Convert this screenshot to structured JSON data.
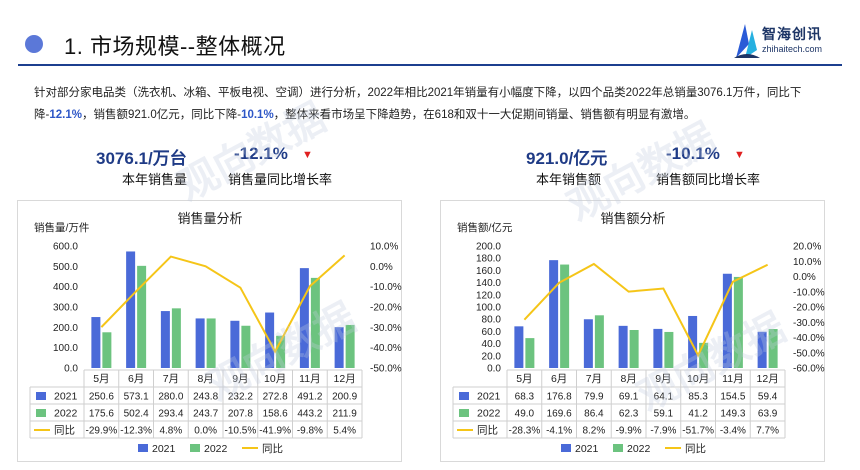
{
  "header": {
    "title": "1. 市场规模--整体概况"
  },
  "logo": {
    "name": "智海创讯",
    "url": "zhihaitech.com"
  },
  "watermark": "观向数据",
  "intro": {
    "p1": "针对部分家电品类（洗衣机、冰箱、平板电视、空调）进行分析，2022年相比2021年销量有小幅度下降，以四个品类2022年总销量3076.1万件，同比下降-",
    "h1": "12.1%",
    "p2": "，销售额921.0亿元，同比下降-",
    "h2": "10.1%",
    "p3": "，整体来看市场呈下降趋势，在618和双十一大促期间销量、销售额有明显有激增。"
  },
  "kpis": {
    "volume": {
      "value": "3076.1/万台",
      "label": "本年销售量",
      "rate": "-12.1%",
      "rate_label": "销售量同比增长率"
    },
    "sales": {
      "value": "921.0/亿元",
      "label": "本年销售额",
      "rate": "-10.1%",
      "rate_label": "销售额同比增长率"
    }
  },
  "colors": {
    "y2021": "#4a6ad8",
    "y2022": "#6cc37f",
    "yoy": "#f5c518"
  },
  "chart_data": [
    {
      "type": "bar",
      "title": "销售量分析",
      "ylabel": "销售量/万件",
      "categories": [
        "5月",
        "6月",
        "7月",
        "8月",
        "9月",
        "10月",
        "11月",
        "12月"
      ],
      "series": [
        {
          "name": "2021",
          "values": [
            250.6,
            573.1,
            280.0,
            243.8,
            232.2,
            272.8,
            491.2,
            200.9
          ]
        },
        {
          "name": "2022",
          "values": [
            175.6,
            502.4,
            293.4,
            243.7,
            207.8,
            158.6,
            443.2,
            211.9
          ]
        }
      ],
      "line_series": {
        "name": "同比",
        "values": [
          -29.9,
          -12.3,
          4.8,
          0.0,
          -10.5,
          -41.9,
          -9.8,
          5.4
        ],
        "labels": [
          "-29.9%",
          "-12.3%",
          "4.8%",
          "0.0%",
          "-10.5%",
          "-41.9%",
          "-9.8%",
          "5.4%"
        ]
      },
      "ylim": [
        0,
        600
      ],
      "yticks": [
        "0.0",
        "100.0",
        "200.0",
        "300.0",
        "400.0",
        "500.0",
        "600.0"
      ],
      "y2lim": [
        -50,
        10
      ],
      "y2ticks": [
        "-50.0%",
        "-40.0%",
        "-30.0%",
        "-20.0%",
        "-10.0%",
        "0.0%",
        "10.0%"
      ],
      "legend": [
        "2021",
        "2022",
        "同比"
      ],
      "legend_position": "bottom"
    },
    {
      "type": "bar",
      "title": "销售额分析",
      "ylabel": "销售额/亿元",
      "categories": [
        "5月",
        "6月",
        "7月",
        "8月",
        "9月",
        "10月",
        "11月",
        "12月"
      ],
      "series": [
        {
          "name": "2021",
          "values": [
            68.3,
            176.8,
            79.9,
            69.1,
            64.1,
            85.3,
            154.5,
            59.4
          ]
        },
        {
          "name": "2022",
          "values": [
            49.0,
            169.6,
            86.4,
            62.3,
            59.1,
            41.2,
            149.3,
            63.9
          ]
        }
      ],
      "line_series": {
        "name": "同比",
        "values": [
          -28.3,
          -4.1,
          8.2,
          -9.9,
          -7.9,
          -51.7,
          -3.4,
          7.7
        ],
        "labels": [
          "-28.3%",
          "-4.1%",
          "8.2%",
          "-9.9%",
          "-7.9%",
          "-51.7%",
          "-3.4%",
          "7.7%"
        ]
      },
      "ylim": [
        0,
        200
      ],
      "yticks": [
        "0.0",
        "20.0",
        "40.0",
        "60.0",
        "80.0",
        "100.0",
        "120.0",
        "140.0",
        "160.0",
        "180.0",
        "200.0"
      ],
      "y2lim": [
        -60,
        20
      ],
      "y2ticks": [
        "-60.0%",
        "-50.0%",
        "-40.0%",
        "-30.0%",
        "-20.0%",
        "-10.0%",
        "0.0%",
        "10.0%",
        "20.0%"
      ],
      "legend": [
        "2021",
        "2022",
        "同比"
      ],
      "legend_position": "bottom"
    }
  ]
}
